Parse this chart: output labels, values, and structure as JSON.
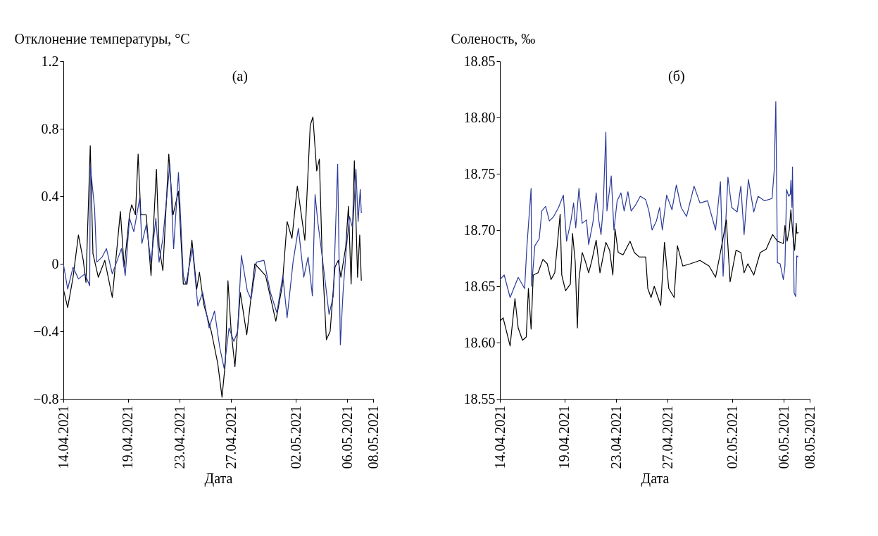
{
  "chart_data": [
    {
      "type": "line",
      "ylabel": "Отклонение температуры, °C",
      "xlabel": "Дата",
      "annotations": [
        "(а)"
      ],
      "xlim": [
        "2021-04-14",
        "2021-05-08"
      ],
      "xticks": [
        {
          "value": "2021-04-14",
          "label": "14.04.2021"
        },
        {
          "value": "2021-04-19",
          "label": "19.04.2021"
        },
        {
          "value": "2021-04-23",
          "label": "23.04.2021"
        },
        {
          "value": "2021-04-27",
          "label": "27.04.2021"
        },
        {
          "value": "2021-05-02",
          "label": "02.05.2021"
        },
        {
          "value": "2021-05-06",
          "label": "06.05.2021"
        },
        {
          "value": "2021-05-08",
          "label": "08.05.2021"
        }
      ],
      "ylim": [
        -0.8,
        1.2
      ],
      "yticks": [
        {
          "value": -0.8,
          "label": "−0.8"
        },
        {
          "value": -0.4,
          "label": "−0.4"
        },
        0,
        0.4,
        0.8,
        1.2
      ],
      "grid": false,
      "legend": false,
      "series": [
        {
          "color": "#000000",
          "x": [
            "2021-04-14T00:00",
            "2021-04-14T08:00",
            "2021-04-14T18:00",
            "2021-04-15T04:00",
            "2021-04-15T13:00",
            "2021-04-15T18:00",
            "2021-04-16T02:00",
            "2021-04-16T07:00",
            "2021-04-16T17:00",
            "2021-04-17T05:00",
            "2021-04-17T19:00",
            "2021-04-18T10:00",
            "2021-04-18T17:00",
            "2021-04-19T03:00",
            "2021-04-19T07:00",
            "2021-04-19T14:00",
            "2021-04-19T19:00",
            "2021-04-20T00:00",
            "2021-04-20T10:00",
            "2021-04-20T19:00",
            "2021-04-21T05:00",
            "2021-04-21T10:00",
            "2021-04-21T17:00",
            "2021-04-22T04:00",
            "2021-04-22T12:00",
            "2021-04-22T22:00",
            "2021-04-23T07:00",
            "2021-04-23T14:00",
            "2021-04-23T23:00",
            "2021-04-24T08:00",
            "2021-04-24T13:00",
            "2021-04-24T21:00",
            "2021-04-25T11:00",
            "2021-04-25T23:00",
            "2021-04-26T07:00",
            "2021-04-26T13:00",
            "2021-04-26T18:00",
            "2021-04-27T00:00",
            "2021-04-27T07:00",
            "2021-04-27T17:00",
            "2021-04-28T05:00",
            "2021-04-28T20:00",
            "2021-04-29T16:00",
            "2021-04-30T11:00",
            "2021-04-30T23:00",
            "2021-05-01T08:00",
            "2021-05-01T17:00",
            "2021-05-02T03:00",
            "2021-05-02T17:00",
            "2021-05-03T03:00",
            "2021-05-03T08:00",
            "2021-05-03T15:00",
            "2021-05-03T20:00",
            "2021-05-04T01:00",
            "2021-05-04T09:00",
            "2021-05-04T16:00",
            "2021-05-05T01:00",
            "2021-05-05T07:00",
            "2021-05-05T12:00",
            "2021-05-05T21:00",
            "2021-05-06T02:00",
            "2021-05-06T07:00",
            "2021-05-06T13:00",
            "2021-05-06T19:00",
            "2021-05-06T23:00",
            "2021-05-07T02:00"
          ],
          "values": [
            -0.15,
            -0.26,
            -0.08,
            0.17,
            0.02,
            -0.11,
            0.7,
            0.06,
            -0.08,
            0.02,
            -0.2,
            0.31,
            -0.02,
            0.29,
            0.35,
            0.29,
            0.65,
            0.29,
            0.29,
            -0.07,
            0.56,
            0.1,
            -0.04,
            0.65,
            0.29,
            0.43,
            -0.12,
            -0.12,
            0.14,
            -0.15,
            -0.05,
            -0.24,
            -0.4,
            -0.59,
            -0.79,
            -0.59,
            -0.1,
            -0.4,
            -0.61,
            -0.17,
            -0.42,
            0.0,
            -0.07,
            -0.34,
            -0.13,
            0.25,
            0.15,
            0.46,
            0.14,
            0.82,
            0.87,
            0.55,
            0.62,
            0.06,
            -0.45,
            -0.4,
            -0.02,
            0.02,
            -0.08,
            0.1,
            0.34,
            -0.12,
            0.61,
            -0.08,
            0.17,
            -0.1
          ]
        },
        {
          "color": "#2b3a9a",
          "x": [
            "2021-04-14T00:00",
            "2021-04-14T08:00",
            "2021-04-14T18:00",
            "2021-04-15T04:00",
            "2021-04-15T16:00",
            "2021-04-16T01:00",
            "2021-04-16T02:00",
            "2021-04-16T10:00",
            "2021-04-16T14:00",
            "2021-04-17T00:00",
            "2021-04-17T08:00",
            "2021-04-17T19:00",
            "2021-04-18T12:00",
            "2021-04-18T19:00",
            "2021-04-19T03:00",
            "2021-04-19T11:00",
            "2021-04-19T22:00",
            "2021-04-20T02:00",
            "2021-04-20T10:00",
            "2021-04-20T19:00",
            "2021-04-21T04:00",
            "2021-04-21T10:00",
            "2021-04-21T17:00",
            "2021-04-22T06:00",
            "2021-04-22T13:00",
            "2021-04-22T22:00",
            "2021-04-23T07:00",
            "2021-04-23T12:00",
            "2021-04-24T00:00",
            "2021-04-24T10:00",
            "2021-04-24T19:00",
            "2021-04-25T07:00",
            "2021-04-25T17:00",
            "2021-04-26T03:00",
            "2021-04-26T11:00",
            "2021-04-26T20:00",
            "2021-04-27T05:00",
            "2021-04-27T12:00",
            "2021-04-27T19:00",
            "2021-04-28T06:00",
            "2021-04-28T13:00",
            "2021-04-28T23:00",
            "2021-04-29T13:00",
            "2021-04-30T01:00",
            "2021-04-30T13:00",
            "2021-05-01T00:00",
            "2021-05-01T08:00",
            "2021-05-01T19:00",
            "2021-05-02T05:00",
            "2021-05-02T15:00",
            "2021-05-02T23:00",
            "2021-05-03T07:00",
            "2021-05-03T12:00",
            "2021-05-03T17:00",
            "2021-05-03T23:00",
            "2021-05-04T07:00",
            "2021-05-04T14:00",
            "2021-05-04T22:00",
            "2021-05-05T06:00",
            "2021-05-05T11:00",
            "2021-05-05T16:00",
            "2021-05-05T22:00",
            "2021-05-06T04:00",
            "2021-05-06T09:00",
            "2021-05-06T11:00",
            "2021-05-06T16:00",
            "2021-05-06T20:00",
            "2021-05-07T00:00",
            "2021-05-07T02:00"
          ],
          "values": [
            0.0,
            -0.15,
            -0.02,
            -0.09,
            -0.06,
            -0.13,
            0.58,
            0.33,
            0.01,
            0.04,
            0.09,
            -0.06,
            0.09,
            -0.07,
            0.27,
            0.19,
            0.39,
            0.12,
            0.23,
            0.01,
            0.27,
            0.01,
            0.15,
            0.59,
            0.09,
            0.54,
            -0.07,
            -0.12,
            0.09,
            -0.25,
            -0.17,
            -0.38,
            -0.28,
            -0.5,
            -0.62,
            -0.38,
            -0.46,
            -0.4,
            0.05,
            -0.16,
            -0.21,
            0.01,
            0.02,
            -0.17,
            -0.29,
            -0.07,
            -0.32,
            0.01,
            0.21,
            -0.08,
            0.04,
            -0.19,
            0.41,
            0.25,
            0.1,
            -0.11,
            -0.3,
            -0.19,
            0.59,
            -0.48,
            -0.17,
            0.09,
            0.28,
            0.22,
            0.26,
            0.56,
            0.25,
            0.44,
            0.3
          ]
        }
      ]
    },
    {
      "type": "line",
      "ylabel": "Соленость, ‰",
      "xlabel": "Дата",
      "annotations": [
        "(б)"
      ],
      "xlim": [
        "2021-04-14",
        "2021-05-08"
      ],
      "xticks": [
        {
          "value": "2021-04-14",
          "label": "14.04.2021"
        },
        {
          "value": "2021-04-19",
          "label": "19.04.2021"
        },
        {
          "value": "2021-04-23",
          "label": "23.04.2021"
        },
        {
          "value": "2021-04-27",
          "label": "27.04.2021"
        },
        {
          "value": "2021-05-02",
          "label": "02.05.2021"
        },
        {
          "value": "2021-05-06",
          "label": "06.05.2021"
        },
        {
          "value": "2021-05-08",
          "label": "08.05.2021"
        }
      ],
      "ylim": [
        18.55,
        18.85
      ],
      "yticks": [
        18.55,
        {
          "value": 18.6,
          "label": "18.60"
        },
        18.65,
        {
          "value": 18.7,
          "label": "18.70"
        },
        18.75,
        {
          "value": 18.8,
          "label": "18.80"
        },
        18.85
      ],
      "grid": false,
      "legend": false,
      "series": [
        {
          "color": "#2b3a9a",
          "x": [
            "2021-04-14T00:00",
            "2021-04-14T08:00",
            "2021-04-14T19:00",
            "2021-04-15T10:00",
            "2021-04-15T22:00",
            "2021-04-16T02:00",
            "2021-04-16T10:00",
            "2021-04-16T11:00",
            "2021-04-16T17:00",
            "2021-04-17T01:00",
            "2021-04-17T06:00",
            "2021-04-17T13:00",
            "2021-04-17T20:00",
            "2021-04-18T04:00",
            "2021-04-18T13:00",
            "2021-04-18T22:00",
            "2021-04-19T04:00",
            "2021-04-19T12:00",
            "2021-04-19T17:00",
            "2021-04-19T21:00",
            "2021-04-20T03:00",
            "2021-04-20T09:00",
            "2021-04-20T17:00",
            "2021-04-20T21:00",
            "2021-04-21T05:00",
            "2021-04-21T11:00",
            "2021-04-21T16:00",
            "2021-04-21T20:00",
            "2021-04-22T00:00",
            "2021-04-22T05:00",
            "2021-04-22T07:00",
            "2021-04-22T15:00",
            "2021-04-22T20:00",
            "2021-04-23T02:00",
            "2021-04-23T09:00",
            "2021-04-23T15:00",
            "2021-04-23T22:00",
            "2021-04-24T04:00",
            "2021-04-24T12:00",
            "2021-04-24T21:00",
            "2021-04-25T07:00",
            "2021-04-25T13:00",
            "2021-04-25T19:00",
            "2021-04-26T03:00",
            "2021-04-26T09:00",
            "2021-04-26T14:00",
            "2021-04-26T22:00",
            "2021-04-27T08:00",
            "2021-04-27T16:00",
            "2021-04-28T01:00",
            "2021-04-28T11:00",
            "2021-04-29T01:00",
            "2021-04-29T12:00",
            "2021-04-30T02:00",
            "2021-04-30T17:00",
            "2021-05-01T02:00",
            "2021-05-01T07:00",
            "2021-05-01T16:00",
            "2021-05-01T23:00",
            "2021-05-02T09:00",
            "2021-05-02T16:00",
            "2021-05-02T22:00",
            "2021-05-03T06:00",
            "2021-05-03T16:00",
            "2021-05-04T00:00",
            "2021-05-04T12:00",
            "2021-05-05T02:00",
            "2021-05-05T06:00",
            "2021-05-05T09:00",
            "2021-05-05T12:00",
            "2021-05-05T17:00",
            "2021-05-05T23:00",
            "2021-05-06T02:00",
            "2021-05-06T05:00",
            "2021-05-06T09:00",
            "2021-05-06T12:00",
            "2021-05-06T13:00",
            "2021-05-06T15:00",
            "2021-05-06T16:00",
            "2021-05-06T19:00",
            "2021-05-06T22:00",
            "2021-05-07T00:00",
            "2021-05-07T03:00"
          ],
          "values": [
            18.656,
            18.66,
            18.64,
            18.658,
            18.648,
            18.684,
            18.737,
            18.65,
            18.686,
            18.692,
            18.717,
            18.721,
            18.708,
            18.712,
            18.72,
            18.731,
            18.69,
            18.708,
            18.724,
            18.702,
            18.737,
            18.706,
            18.709,
            18.687,
            18.707,
            18.733,
            18.708,
            18.696,
            18.72,
            18.787,
            18.717,
            18.748,
            18.7,
            18.726,
            18.733,
            18.717,
            18.734,
            18.717,
            18.722,
            18.73,
            18.727,
            18.717,
            18.7,
            18.708,
            18.72,
            18.7,
            18.731,
            18.718,
            18.74,
            18.72,
            18.712,
            18.739,
            18.724,
            18.726,
            18.7,
            18.743,
            18.659,
            18.747,
            18.72,
            18.716,
            18.739,
            18.696,
            18.745,
            18.716,
            18.73,
            18.726,
            18.728,
            18.753,
            18.814,
            18.671,
            18.67,
            18.656,
            18.668,
            18.736,
            18.73,
            18.732,
            18.744,
            18.72,
            18.756,
            18.644,
            18.641,
            18.677,
            18.676
          ]
        },
        {
          "color": "#000000",
          "x": [
            "2021-04-14T00:00",
            "2021-04-14T06:00",
            "2021-04-14T19:00",
            "2021-04-15T04:00",
            "2021-04-15T10:00",
            "2021-04-15T18:00",
            "2021-04-16T01:00",
            "2021-04-16T05:00",
            "2021-04-16T10:00",
            "2021-04-16T14:00",
            "2021-04-16T23:00",
            "2021-04-17T08:00",
            "2021-04-17T16:00",
            "2021-04-17T23:00",
            "2021-04-18T06:00",
            "2021-04-18T16:00",
            "2021-04-18T19:00",
            "2021-04-19T02:00",
            "2021-04-19T11:00",
            "2021-04-19T15:00",
            "2021-04-19T20:00",
            "2021-04-20T00:00",
            "2021-04-20T03:00",
            "2021-04-20T09:00",
            "2021-04-20T15:00",
            "2021-04-20T21:00",
            "2021-04-21T03:00",
            "2021-04-21T11:00",
            "2021-04-21T18:00",
            "2021-04-22T05:00",
            "2021-04-22T12:00",
            "2021-04-22T18:00",
            "2021-04-22T22:00",
            "2021-04-23T04:00",
            "2021-04-23T13:00",
            "2021-04-24T02:00",
            "2021-04-24T10:00",
            "2021-04-24T19:00",
            "2021-04-25T07:00",
            "2021-04-25T11:00",
            "2021-04-25T17:00",
            "2021-04-25T23:00",
            "2021-04-26T11:00",
            "2021-04-26T18:00",
            "2021-04-27T02:00",
            "2021-04-27T12:00",
            "2021-04-27T18:00",
            "2021-04-28T04:00",
            "2021-04-28T18:00",
            "2021-04-29T12:00",
            "2021-04-30T05:00",
            "2021-04-30T17:00",
            "2021-05-01T02:00",
            "2021-05-01T13:00",
            "2021-05-01T20:00",
            "2021-05-02T07:00",
            "2021-05-02T16:00",
            "2021-05-02T22:00",
            "2021-05-03T05:00",
            "2021-05-03T16:00",
            "2021-05-04T04:00",
            "2021-05-04T15:00",
            "2021-05-05T03:00",
            "2021-05-05T12:00",
            "2021-05-05T23:00",
            "2021-05-06T02:00",
            "2021-05-06T06:00",
            "2021-05-06T10:00",
            "2021-05-06T13:00",
            "2021-05-06T17:00",
            "2021-05-06T20:00",
            "2021-05-06T23:00",
            "2021-05-07T00:00",
            "2021-05-07T03:00"
          ],
          "values": [
            18.619,
            18.622,
            18.597,
            18.639,
            18.613,
            18.602,
            18.605,
            18.648,
            18.612,
            18.66,
            18.662,
            18.674,
            18.67,
            18.656,
            18.662,
            18.714,
            18.66,
            18.646,
            18.652,
            18.697,
            18.672,
            18.613,
            18.656,
            18.68,
            18.672,
            18.662,
            18.673,
            18.691,
            18.662,
            18.689,
            18.682,
            18.66,
            18.701,
            18.68,
            18.678,
            18.69,
            18.68,
            18.676,
            18.676,
            18.648,
            18.64,
            18.65,
            18.633,
            18.689,
            18.648,
            18.64,
            18.686,
            18.668,
            18.67,
            18.673,
            18.668,
            18.658,
            18.68,
            18.709,
            18.654,
            18.682,
            18.68,
            18.662,
            18.67,
            18.66,
            18.68,
            18.683,
            18.696,
            18.69,
            18.688,
            18.704,
            18.69,
            18.7,
            18.718,
            18.694,
            18.682,
            18.706,
            18.697,
            18.698
          ]
        }
      ]
    }
  ]
}
